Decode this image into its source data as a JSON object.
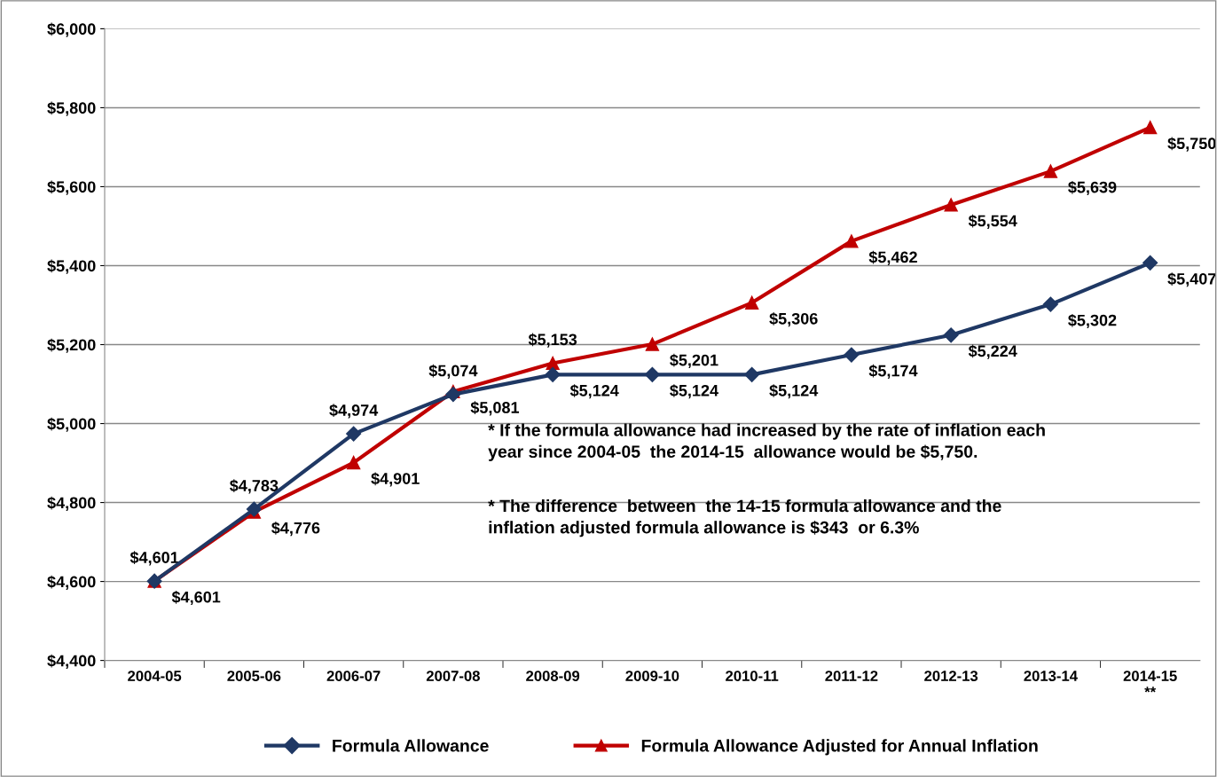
{
  "chart_data": {
    "type": "line",
    "categories": [
      "2004-05",
      "2005-06",
      "2006-07",
      "2007-08",
      "2008-09",
      "2009-10",
      "2010-11",
      "2011-12",
      "2012-13",
      "2013-14",
      "2014-15\n**"
    ],
    "series": [
      {
        "name": "Formula Allowance",
        "color": "#1f3864",
        "marker": "diamond",
        "values": [
          4601,
          4783,
          4974,
          5074,
          5124,
          5124,
          5124,
          5174,
          5224,
          5302,
          5407
        ],
        "value_labels": [
          "$4,601",
          "$4,783",
          "$4,974",
          "$5,074",
          "$5,124",
          "$5,124",
          "$5,124",
          "$5,174",
          "$5,224",
          "$5,302",
          "$5,407"
        ]
      },
      {
        "name": "Formula Allowance Adjusted for Annual Inflation",
        "color": "#c00000",
        "marker": "triangle",
        "values": [
          4601,
          4776,
          4901,
          5081,
          5153,
          5201,
          5306,
          5462,
          5554,
          5639,
          5750
        ],
        "value_labels": [
          "$4,601",
          "$4,776",
          "$4,901",
          "$5,081",
          "$5,153",
          "$5,201",
          "$5,306",
          "$5,462",
          "$5,554",
          "$5,639",
          "$5,750"
        ]
      }
    ],
    "ylim": [
      4400,
      6000
    ],
    "yticks": [
      {
        "value": 4400,
        "label": "$4,400"
      },
      {
        "value": 4600,
        "label": "$4,600"
      },
      {
        "value": 4800,
        "label": "$4,800"
      },
      {
        "value": 5000,
        "label": "$5,000"
      },
      {
        "value": 5200,
        "label": "$5,200"
      },
      {
        "value": 5400,
        "label": "$5,400"
      },
      {
        "value": 5600,
        "label": "$5,600"
      },
      {
        "value": 5800,
        "label": "$5,800"
      },
      {
        "value": 6000,
        "label": "$6,000"
      }
    ],
    "grid": "y",
    "legend": "bottom",
    "annotations": [
      {
        "text": "* If the formula allowance had increased by the rate of inflation each\nyear since 2004-05  the 2014-15  allowance would be $5,750."
      },
      {
        "text": "* The difference  between  the 14-15 formula allowance and the\ninflation adjusted formula allowance is $343  or 6.3%"
      }
    ]
  }
}
